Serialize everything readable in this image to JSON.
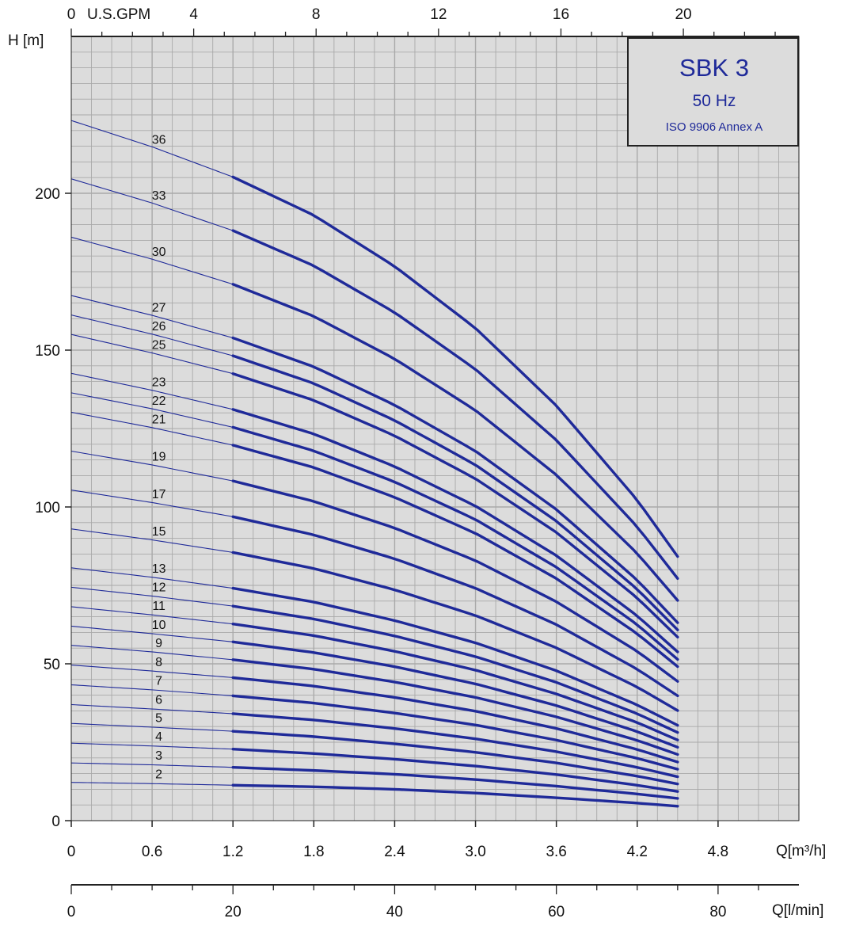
{
  "chart_data": {
    "type": "line",
    "title": "SBK 3",
    "subtitle": "50 Hz",
    "note": "ISO 9906 Annex A",
    "xlabel": "Q[m³/h]",
    "xlabel_secondary": "Q[l/min]",
    "xlabel_top": "U.S.GPM",
    "ylabel": "H [m]",
    "xlim": [
      0,
      5.4
    ],
    "ylim": [
      0,
      250
    ],
    "x_ticks": [
      "0",
      "0.6",
      "1.2",
      "1.8",
      "2.4",
      "3.0",
      "3.6",
      "4.2",
      "4.8"
    ],
    "y_ticks": [
      "0",
      "50",
      "100",
      "150",
      "200"
    ],
    "top_ticks": [
      "0",
      "4",
      "8",
      "12",
      "16",
      "20"
    ],
    "bottom_ticks": [
      "0",
      "20",
      "40",
      "60",
      "80"
    ],
    "grid": true,
    "colors": {
      "curve": "#1f2a99",
      "title": "#1f2a99",
      "grid": "#a9a9a9",
      "background": "#dcdcdc"
    },
    "operating_range": [
      1.2,
      4.5
    ],
    "x": [
      0,
      0.6,
      1.2,
      1.8,
      2.4,
      3.0,
      3.6,
      4.2,
      4.5
    ],
    "series": [
      {
        "name": "2",
        "values": [
          12.2,
          11.8,
          11.3,
          10.8,
          10.0,
          8.8,
          7.3,
          5.6,
          4.6
        ]
      },
      {
        "name": "3",
        "values": [
          18.4,
          17.8,
          17.0,
          16.0,
          14.8,
          13.1,
          11.0,
          8.5,
          7.1
        ]
      },
      {
        "name": "4",
        "values": [
          24.7,
          23.8,
          22.8,
          21.4,
          19.6,
          17.4,
          14.7,
          11.3,
          9.3
        ]
      },
      {
        "name": "5",
        "values": [
          31.0,
          29.8,
          28.5,
          26.8,
          24.5,
          21.8,
          18.4,
          14.2,
          11.7
        ]
      },
      {
        "name": "6",
        "values": [
          37.0,
          35.6,
          34.1,
          32.1,
          29.4,
          26.1,
          22.0,
          17.0,
          14.0
        ]
      },
      {
        "name": "7",
        "values": [
          43.3,
          41.7,
          39.8,
          37.5,
          34.3,
          30.5,
          25.7,
          19.9,
          16.4
        ]
      },
      {
        "name": "8",
        "values": [
          49.6,
          47.7,
          45.6,
          42.9,
          39.3,
          34.9,
          29.4,
          22.7,
          18.7
        ]
      },
      {
        "name": "9",
        "values": [
          55.9,
          53.8,
          51.3,
          48.3,
          44.2,
          39.3,
          33.1,
          25.6,
          21.1
        ]
      },
      {
        "name": "10",
        "values": [
          62.0,
          59.6,
          57.0,
          53.6,
          49.1,
          43.6,
          36.7,
          28.4,
          23.4
        ]
      },
      {
        "name": "11",
        "values": [
          68.2,
          65.6,
          62.7,
          59.0,
          54.0,
          48.0,
          40.4,
          31.3,
          25.7
        ]
      },
      {
        "name": "12",
        "values": [
          74.4,
          71.6,
          68.4,
          64.3,
          58.9,
          52.3,
          44.1,
          34.1,
          28.1
        ]
      },
      {
        "name": "13",
        "values": [
          80.6,
          77.6,
          74.1,
          69.7,
          63.8,
          56.7,
          47.8,
          36.9,
          30.4
        ]
      },
      {
        "name": "15",
        "values": [
          93.0,
          89.5,
          85.5,
          80.4,
          73.6,
          65.4,
          55.1,
          42.6,
          35.1
        ]
      },
      {
        "name": "17",
        "values": [
          105.4,
          101.4,
          96.9,
          91.1,
          83.5,
          74.1,
          62.5,
          48.3,
          39.8
        ]
      },
      {
        "name": "19",
        "values": [
          117.8,
          113.4,
          108.3,
          101.8,
          93.3,
          82.9,
          69.8,
          54.0,
          44.4
        ]
      },
      {
        "name": "21",
        "values": [
          130.2,
          125.3,
          119.7,
          112.6,
          103.1,
          91.6,
          77.2,
          59.6,
          49.1
        ]
      },
      {
        "name": "22",
        "values": [
          136.4,
          131.3,
          125.4,
          117.9,
          108.0,
          96.0,
          80.8,
          62.5,
          51.4
        ]
      },
      {
        "name": "23",
        "values": [
          142.6,
          137.2,
          131.1,
          123.3,
          112.9,
          100.3,
          84.5,
          65.3,
          53.8
        ]
      },
      {
        "name": "25",
        "values": [
          155.0,
          149.1,
          142.5,
          134.0,
          122.7,
          109.0,
          91.9,
          71.0,
          58.5
        ]
      },
      {
        "name": "26",
        "values": [
          161.2,
          155.1,
          148.2,
          139.4,
          127.6,
          113.4,
          95.5,
          73.8,
          60.8
        ]
      },
      {
        "name": "27",
        "values": [
          167.4,
          161.1,
          153.9,
          144.7,
          132.5,
          117.8,
          99.2,
          76.7,
          63.1
        ]
      },
      {
        "name": "30",
        "values": [
          186.0,
          179.0,
          171.0,
          160.8,
          147.2,
          130.8,
          110.2,
          85.2,
          70.2
        ]
      },
      {
        "name": "33",
        "values": [
          204.6,
          196.9,
          188.1,
          176.9,
          162.0,
          143.9,
          121.3,
          93.7,
          77.2
        ]
      },
      {
        "name": "36",
        "values": [
          223.2,
          214.8,
          205.2,
          193.0,
          176.7,
          157.0,
          132.3,
          102.2,
          84.2
        ]
      }
    ]
  }
}
